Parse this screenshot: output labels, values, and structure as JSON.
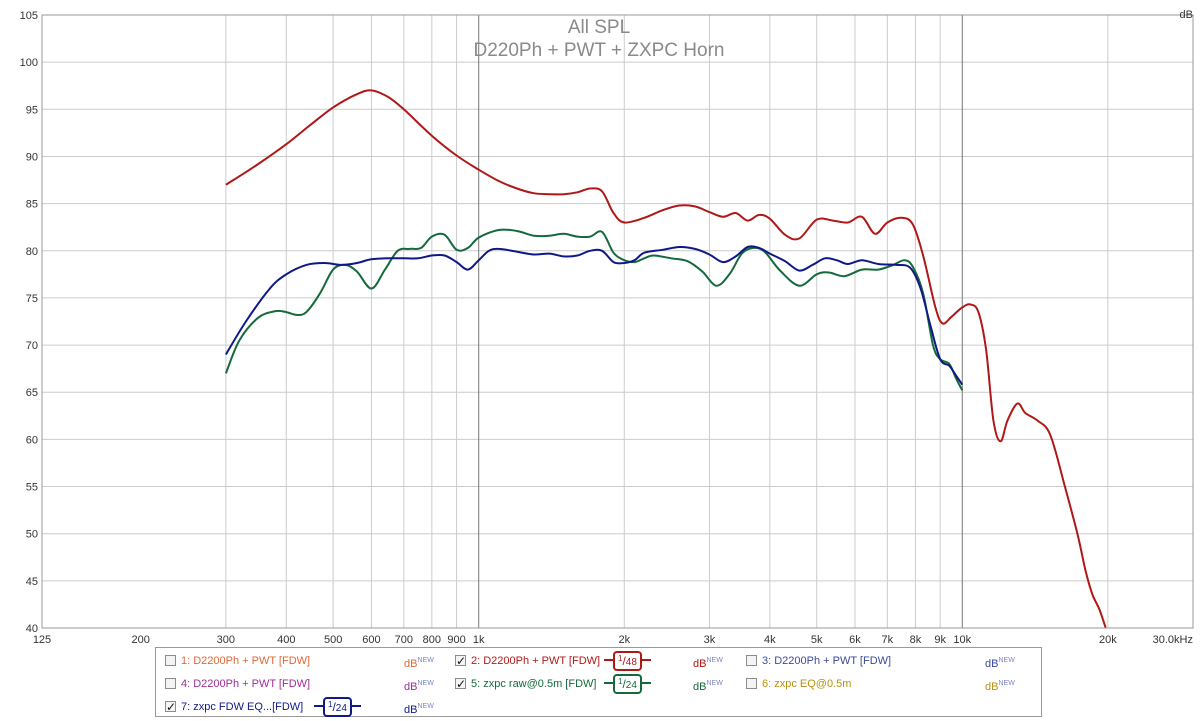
{
  "chart_data": {
    "type": "line",
    "title": "All SPL",
    "subtitle": "D220Ph + PWT + ZXPC Horn",
    "ylabel": "dB",
    "xscale": "log",
    "xlim": [
      125,
      30000
    ],
    "ylim": [
      40,
      105
    ],
    "grid": true,
    "y_ticks": [
      40,
      45,
      50,
      55,
      60,
      65,
      70,
      75,
      80,
      85,
      90,
      95,
      100,
      105
    ],
    "x_ticks": [
      {
        "v": 125,
        "label": "125"
      },
      {
        "v": 200,
        "label": "200"
      },
      {
        "v": 300,
        "label": "300"
      },
      {
        "v": 400,
        "label": "400"
      },
      {
        "v": 500,
        "label": "500"
      },
      {
        "v": 600,
        "label": "600"
      },
      {
        "v": 700,
        "label": "700"
      },
      {
        "v": 800,
        "label": "800"
      },
      {
        "v": 900,
        "label": "900"
      },
      {
        "v": 1000,
        "label": "1k"
      },
      {
        "v": 2000,
        "label": "2k"
      },
      {
        "v": 3000,
        "label": "3k"
      },
      {
        "v": 4000,
        "label": "4k"
      },
      {
        "v": 5000,
        "label": "5k"
      },
      {
        "v": 6000,
        "label": "6k"
      },
      {
        "v": 7000,
        "label": "7k"
      },
      {
        "v": 8000,
        "label": "8k"
      },
      {
        "v": 9000,
        "label": "9k"
      },
      {
        "v": 10000,
        "label": "10k"
      },
      {
        "v": 20000,
        "label": "20k"
      },
      {
        "v": 30000,
        "label": "30.0kHz"
      }
    ],
    "x_minor": [
      300,
      400,
      500,
      600,
      700,
      800,
      900,
      2000,
      3000,
      4000,
      5000,
      6000,
      7000,
      8000,
      9000,
      20000
    ],
    "x_major": [
      1000,
      10000
    ],
    "series": [
      {
        "name": "2: D2200Ph + PWT [FDW]",
        "color": "#b01818",
        "points": [
          [
            300,
            87
          ],
          [
            350,
            89.2
          ],
          [
            400,
            91.3
          ],
          [
            450,
            93.4
          ],
          [
            500,
            95.2
          ],
          [
            560,
            96.6
          ],
          [
            600,
            97
          ],
          [
            650,
            96.3
          ],
          [
            700,
            95
          ],
          [
            800,
            92.2
          ],
          [
            900,
            90.1
          ],
          [
            1000,
            88.6
          ],
          [
            1100,
            87.4
          ],
          [
            1200,
            86.6
          ],
          [
            1300,
            86.1
          ],
          [
            1400,
            86
          ],
          [
            1500,
            86
          ],
          [
            1600,
            86.2
          ],
          [
            1700,
            86.6
          ],
          [
            1800,
            86.3
          ],
          [
            1900,
            84
          ],
          [
            2000,
            83
          ],
          [
            2200,
            83.5
          ],
          [
            2400,
            84.3
          ],
          [
            2600,
            84.8
          ],
          [
            2800,
            84.7
          ],
          [
            3000,
            84.1
          ],
          [
            3200,
            83.6
          ],
          [
            3400,
            84
          ],
          [
            3600,
            83.2
          ],
          [
            3800,
            83.8
          ],
          [
            4000,
            83.4
          ],
          [
            4300,
            81.7
          ],
          [
            4600,
            81.3
          ],
          [
            5000,
            83.3
          ],
          [
            5400,
            83.2
          ],
          [
            5800,
            83
          ],
          [
            6200,
            83.6
          ],
          [
            6600,
            81.8
          ],
          [
            7000,
            83
          ],
          [
            7500,
            83.5
          ],
          [
            7900,
            82.8
          ],
          [
            8300,
            79.5
          ],
          [
            8800,
            74
          ],
          [
            9100,
            72.3
          ],
          [
            9500,
            73
          ],
          [
            10000,
            74
          ],
          [
            10400,
            74.3
          ],
          [
            10800,
            73.5
          ],
          [
            11200,
            69.5
          ],
          [
            11600,
            62
          ],
          [
            12000,
            59.8
          ],
          [
            12400,
            62
          ],
          [
            13000,
            63.8
          ],
          [
            13500,
            62.8
          ],
          [
            14300,
            62
          ],
          [
            15200,
            60.5
          ],
          [
            16300,
            55
          ],
          [
            17300,
            50
          ],
          [
            18000,
            46
          ],
          [
            18600,
            43.5
          ],
          [
            19200,
            42
          ],
          [
            19800,
            40
          ]
        ]
      },
      {
        "name": "5: zxpc raw@0.5m [FDW]",
        "color": "#156a3c",
        "points": [
          [
            300,
            67
          ],
          [
            320,
            70.5
          ],
          [
            350,
            72.9
          ],
          [
            380,
            73.6
          ],
          [
            400,
            73.5
          ],
          [
            420,
            73.2
          ],
          [
            440,
            73.5
          ],
          [
            470,
            75.5
          ],
          [
            500,
            78
          ],
          [
            530,
            78.5
          ],
          [
            560,
            77.8
          ],
          [
            600,
            76
          ],
          [
            640,
            78
          ],
          [
            680,
            80
          ],
          [
            720,
            80.2
          ],
          [
            760,
            80.3
          ],
          [
            800,
            81.5
          ],
          [
            850,
            81.7
          ],
          [
            900,
            80.1
          ],
          [
            950,
            80.3
          ],
          [
            1000,
            81.4
          ],
          [
            1100,
            82.2
          ],
          [
            1200,
            82.1
          ],
          [
            1300,
            81.6
          ],
          [
            1400,
            81.6
          ],
          [
            1500,
            81.8
          ],
          [
            1600,
            81.5
          ],
          [
            1700,
            81.5
          ],
          [
            1800,
            82
          ],
          [
            1900,
            79.8
          ],
          [
            2000,
            79
          ],
          [
            2100,
            78.8
          ],
          [
            2200,
            79.2
          ],
          [
            2300,
            79.5
          ],
          [
            2500,
            79.2
          ],
          [
            2700,
            78.9
          ],
          [
            2900,
            77.8
          ],
          [
            3100,
            76.3
          ],
          [
            3300,
            77.5
          ],
          [
            3500,
            79.7
          ],
          [
            3700,
            80.3
          ],
          [
            3900,
            79.9
          ],
          [
            4200,
            77.9
          ],
          [
            4600,
            76.3
          ],
          [
            5000,
            77.5
          ],
          [
            5300,
            77.7
          ],
          [
            5700,
            77.3
          ],
          [
            6200,
            78
          ],
          [
            6700,
            78
          ],
          [
            7200,
            78.5
          ],
          [
            7600,
            79
          ],
          [
            7900,
            78.3
          ],
          [
            8300,
            75.5
          ],
          [
            8700,
            70
          ],
          [
            9000,
            68.5
          ],
          [
            9400,
            68
          ],
          [
            9700,
            66.5
          ],
          [
            10000,
            65.2
          ]
        ]
      },
      {
        "name": "7: zxpc FDW  EQ...[FDW]",
        "color": "#101888",
        "points": [
          [
            300,
            69
          ],
          [
            330,
            72.5
          ],
          [
            370,
            76
          ],
          [
            400,
            77.5
          ],
          [
            440,
            78.5
          ],
          [
            480,
            78.7
          ],
          [
            520,
            78.5
          ],
          [
            560,
            78.7
          ],
          [
            600,
            79.1
          ],
          [
            650,
            79.2
          ],
          [
            700,
            79.2
          ],
          [
            750,
            79.2
          ],
          [
            800,
            79.5
          ],
          [
            850,
            79.5
          ],
          [
            900,
            78.8
          ],
          [
            950,
            78
          ],
          [
            1000,
            79
          ],
          [
            1050,
            80
          ],
          [
            1100,
            80.2
          ],
          [
            1200,
            79.9
          ],
          [
            1300,
            79.6
          ],
          [
            1400,
            79.7
          ],
          [
            1500,
            79.4
          ],
          [
            1600,
            79.5
          ],
          [
            1700,
            80
          ],
          [
            1800,
            80
          ],
          [
            1900,
            78.8
          ],
          [
            2000,
            78.7
          ],
          [
            2100,
            79
          ],
          [
            2200,
            79.8
          ],
          [
            2400,
            80.1
          ],
          [
            2600,
            80.4
          ],
          [
            2800,
            80.2
          ],
          [
            3000,
            79.6
          ],
          [
            3200,
            78.8
          ],
          [
            3400,
            79.4
          ],
          [
            3600,
            80.4
          ],
          [
            3800,
            80.3
          ],
          [
            4000,
            79.7
          ],
          [
            4300,
            78.9
          ],
          [
            4600,
            77.9
          ],
          [
            4900,
            78.5
          ],
          [
            5200,
            79.2
          ],
          [
            5500,
            79
          ],
          [
            5800,
            78.6
          ],
          [
            6200,
            79
          ],
          [
            6700,
            78.6
          ],
          [
            7300,
            78.5
          ],
          [
            7800,
            78.2
          ],
          [
            8200,
            76
          ],
          [
            8600,
            72
          ],
          [
            9000,
            68.5
          ],
          [
            9400,
            67.8
          ],
          [
            9700,
            66.8
          ],
          [
            10000,
            65.8
          ]
        ]
      }
    ]
  },
  "legend": {
    "items": [
      {
        "label": "1: D2200Ph + PWT [FDW]",
        "checked": false,
        "color": "#e0683a",
        "db": "dB",
        "db_sup": "NEW"
      },
      {
        "label": "2: D2200Ph + PWT [FDW]",
        "checked": true,
        "color": "#b01818",
        "db": "dB",
        "db_sup": "NEW",
        "smoothing": {
          "num": "1",
          "den": "48"
        }
      },
      {
        "label": "3: D2200Ph + PWT [FDW]",
        "checked": false,
        "color": "#3a4aa0",
        "db": "dB",
        "db_sup": "NEW"
      },
      {
        "label": "4: D2200Ph + PWT [FDW]",
        "checked": false,
        "color": "#a02c9a",
        "db": "dB",
        "db_sup": "NEW"
      },
      {
        "label": "5: zxpc raw@0.5m [FDW]",
        "checked": true,
        "color": "#156a3c",
        "db": "dB",
        "db_sup": "NEW",
        "smoothing": {
          "num": "1",
          "den": "24"
        }
      },
      {
        "label": "6: zxpc EQ@0.5m",
        "checked": false,
        "color": "#b89010",
        "db": "dB",
        "db_sup": "NEW"
      },
      {
        "label": "7: zxpc FDW  EQ...[FDW]",
        "checked": true,
        "color": "#101888",
        "db": "dB",
        "db_sup": "NEW",
        "smoothing": {
          "num": "1",
          "den": "24"
        }
      }
    ]
  }
}
